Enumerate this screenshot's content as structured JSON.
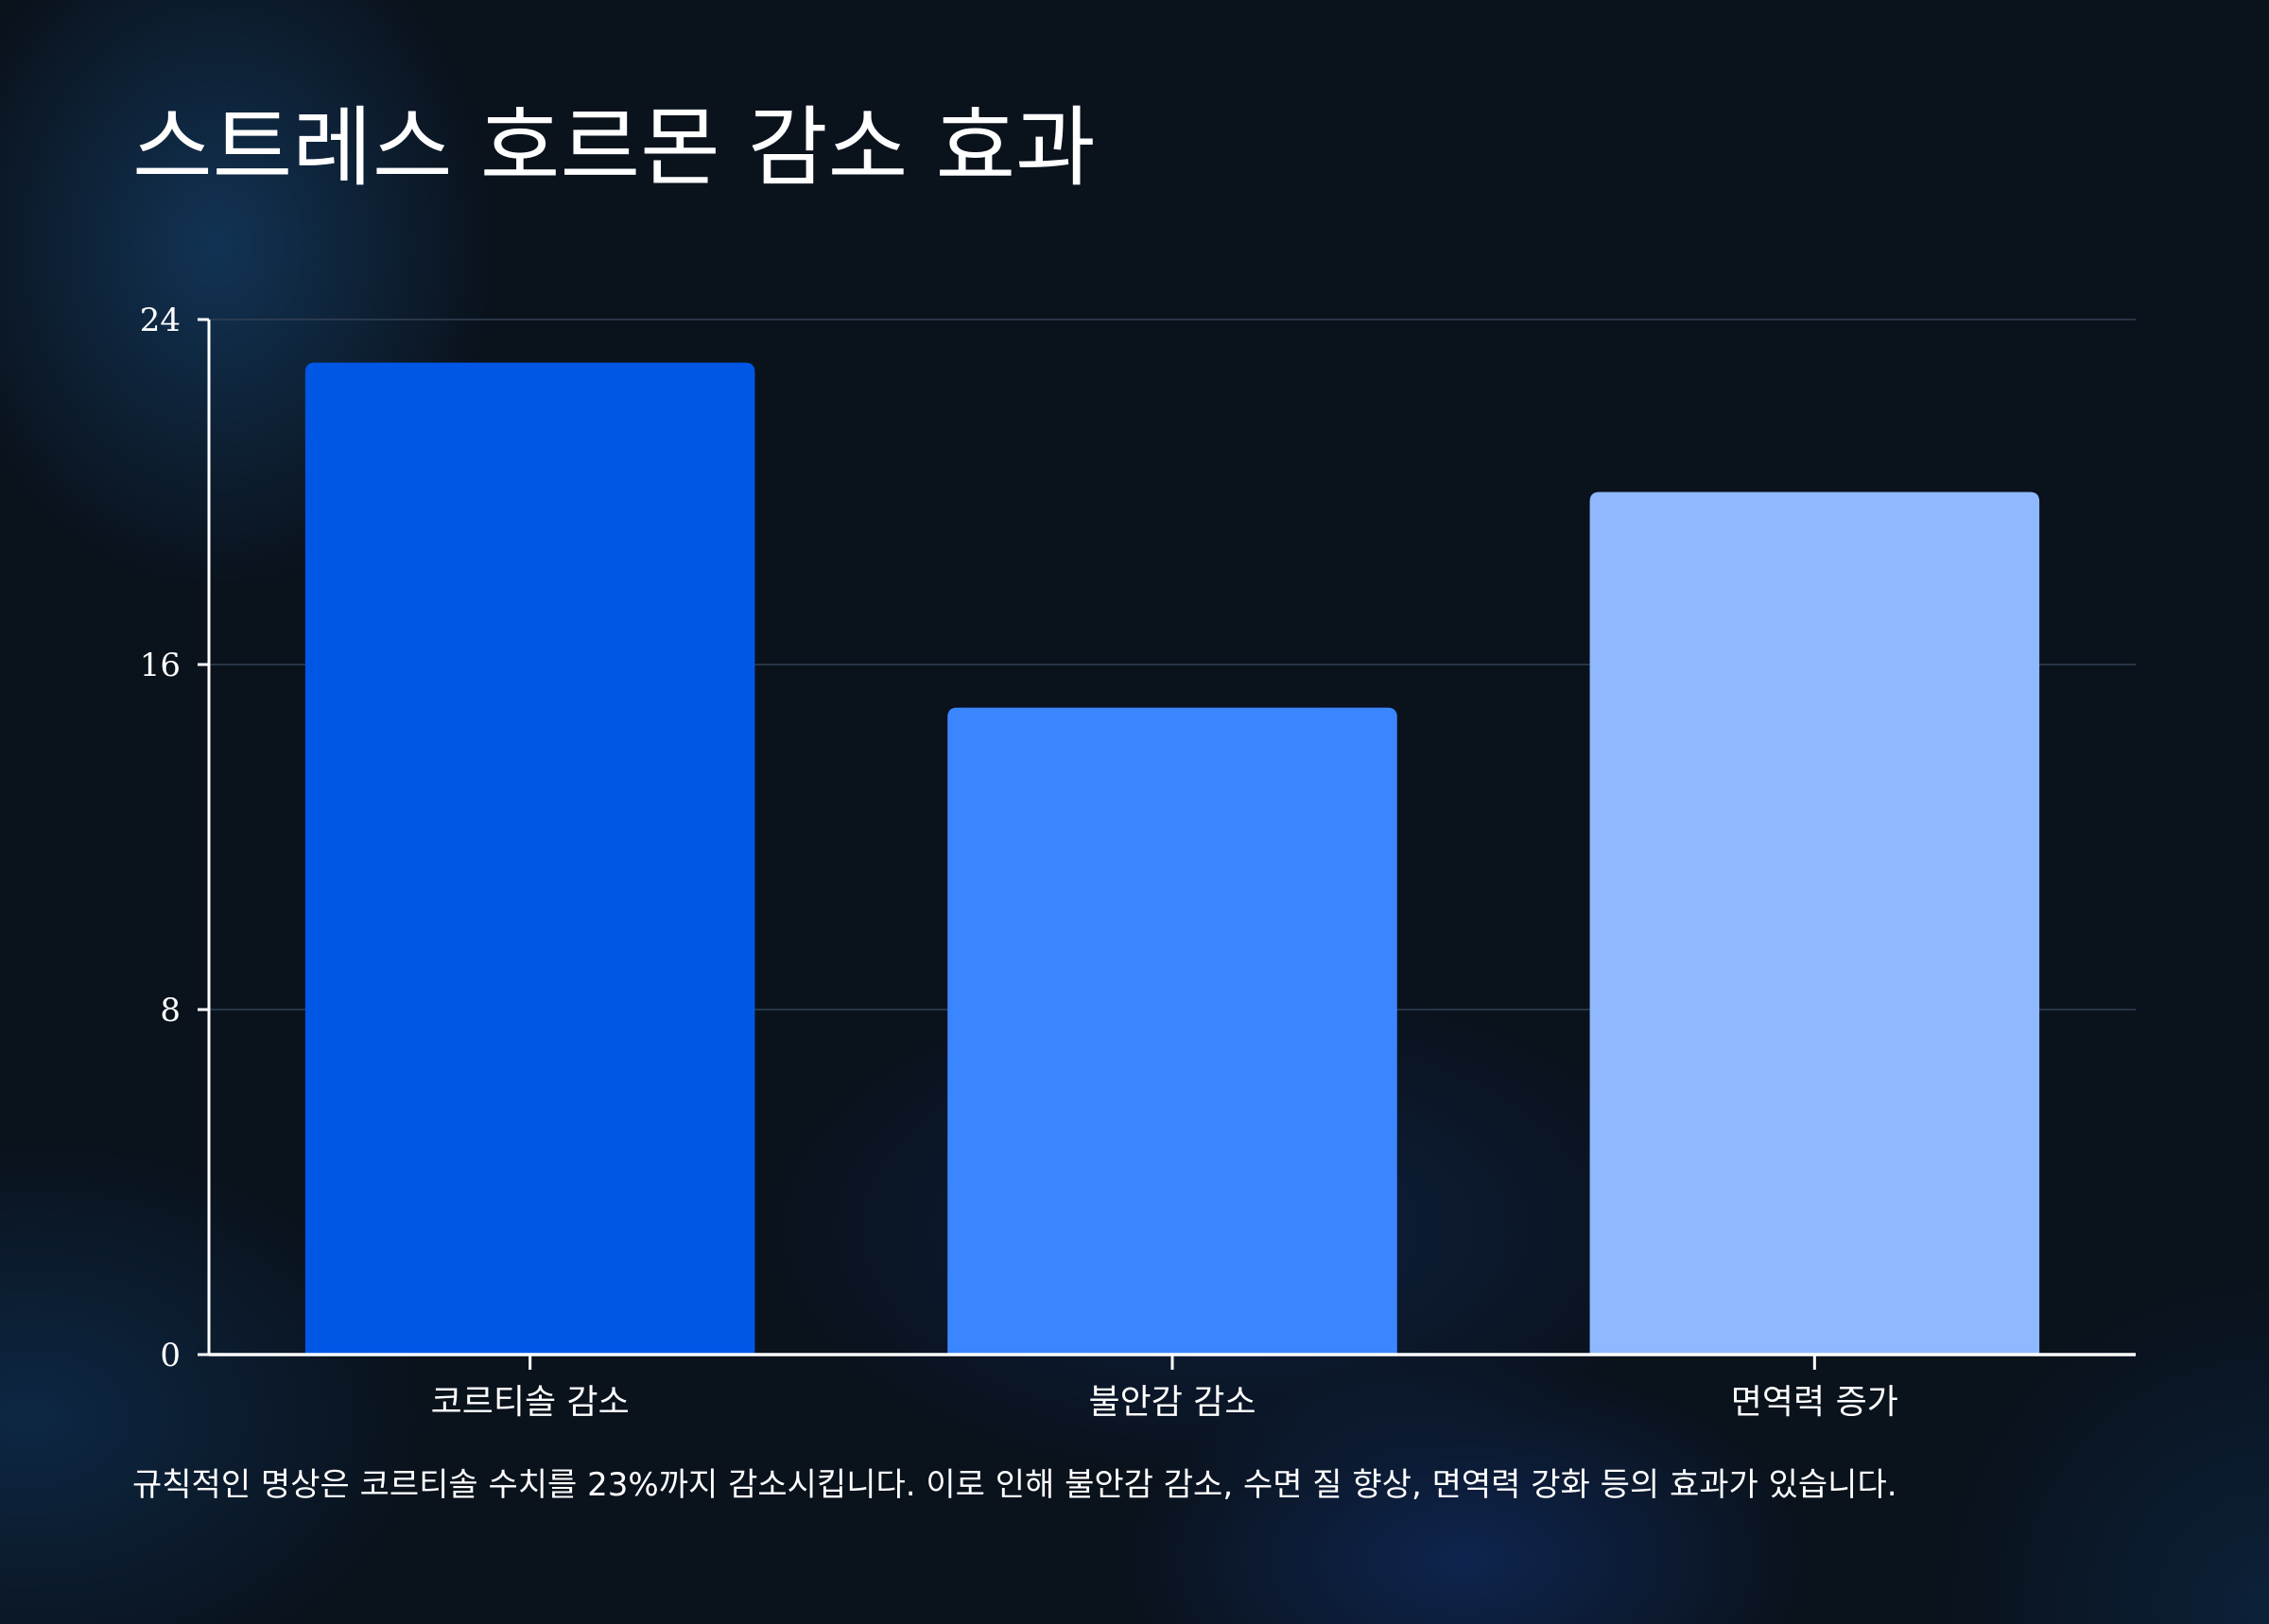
{
  "chart_data": {
    "type": "bar",
    "title": "스트레스 호르몬 감소 효과",
    "categories": [
      "코르티솔 감소",
      "불안감 감소",
      "면역력 증가"
    ],
    "values": [
      23,
      15,
      20
    ],
    "colors": [
      "#0057e6",
      "#3b86ff",
      "#90b8ff"
    ],
    "ylim": [
      0,
      24
    ],
    "yticks": [
      0,
      8,
      16,
      24
    ],
    "ytick_labels": [
      "0",
      "8",
      "16",
      "24"
    ],
    "grid": true,
    "xlabel": "",
    "ylabel": ""
  },
  "caption": "규칙적인 명상은 코르티솔 수치를 23%까지 감소시킵니다. 이로 인해 불안감 감소, 수면 질 향상, 면역력 강화 등의 효과가 있습니다.",
  "style": {
    "background": "#0a121c",
    "gridline": "#334155",
    "axis": "#ffffff",
    "text": "#ffffff"
  }
}
